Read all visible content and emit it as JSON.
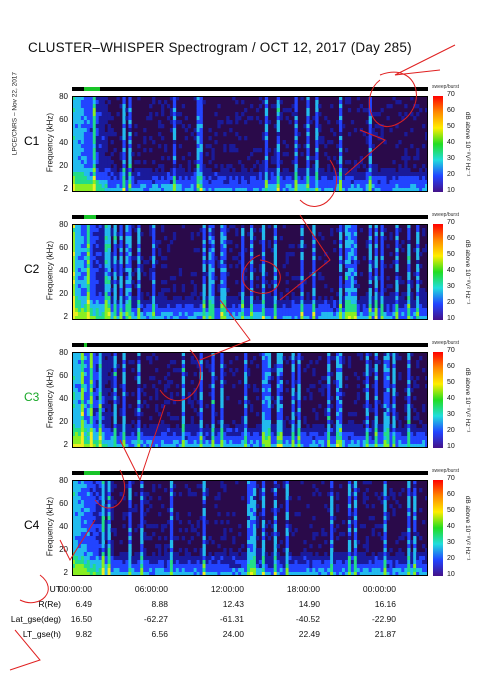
{
  "title": "CLUSTER–WHISPER Spectrogram / OCT 12, 2017 (Day 285)",
  "side_label": "LPCE/CNRS – Nov 22, 2017",
  "panels": [
    {
      "id": "C1",
      "color": "#000000",
      "ylabel": "Frequency (kHz)",
      "yticks": [
        "80",
        "60",
        "40",
        "20",
        "2"
      ],
      "status_label": "sweep/burst",
      "cbar_label": "dB above 10⁻⁸V² Hz⁻¹"
    },
    {
      "id": "C2",
      "color": "#000000",
      "ylabel": "Frequency (kHz)",
      "yticks": [
        "80",
        "60",
        "40",
        "20",
        "2"
      ],
      "status_label": "sweep/burst",
      "cbar_label": "dB above 10⁻⁸V² Hz⁻¹"
    },
    {
      "id": "C3",
      "color": "#18a828",
      "ylabel": "Frequency (kHz)",
      "yticks": [
        "80",
        "60",
        "40",
        "20",
        "2"
      ],
      "status_label": "sweep/burst",
      "cbar_label": "dB above 10⁻⁸V² Hz⁻¹"
    },
    {
      "id": "C4",
      "color": "#000000",
      "ylabel": "Frequency (kHz)",
      "yticks": [
        "80",
        "60",
        "40",
        "20",
        "2"
      ],
      "status_label": "sweep/burst",
      "cbar_label": "dB above 10⁻⁸V² Hz⁻¹"
    }
  ],
  "colorbar_ticks": [
    "70",
    "60",
    "50",
    "40",
    "30",
    "20",
    "10"
  ],
  "colorbar_colors": [
    "#ff0000",
    "#ff8800",
    "#ffee00",
    "#22dd22",
    "#22dddd",
    "#2244ff",
    "#441188"
  ],
  "ephemeris": {
    "rows": [
      {
        "key": "UT",
        "values": [
          "00:00:00",
          "06:00:00",
          "12:00:00",
          "18:00:00",
          "00:00:00"
        ]
      },
      {
        "key": "R(Re)",
        "values": [
          "6.49",
          "8.88",
          "12.43",
          "14.90",
          "16.16"
        ]
      },
      {
        "key": "Lat_gse(deg)",
        "values": [
          "16.50",
          "-62.27",
          "-61.31",
          "-40.52",
          "-22.90"
        ]
      },
      {
        "key": "LT_gse(h)",
        "values": [
          "9.82",
          "6.56",
          "24.00",
          "22.49",
          "21.87"
        ]
      }
    ]
  },
  "chart_data": {
    "type": "heatmap",
    "title": "CLUSTER–WHISPER Spectrogram / OCT 12, 2017 (Day 285)",
    "xlabel": "UT",
    "ylabel": "Frequency (kHz)",
    "x_ticks": [
      "00:00:00",
      "06:00:00",
      "12:00:00",
      "18:00:00",
      "00:00:00"
    ],
    "xlim": [
      "00:00:00",
      "00:00:00"
    ],
    "y_ticks": [
      2,
      20,
      40,
      60,
      80
    ],
    "ylim": [
      2,
      80
    ],
    "colorbar": {
      "label": "dB above 10⁻⁸V² Hz⁻¹",
      "range": [
        10,
        70
      ],
      "ticks": [
        10,
        20,
        30,
        40,
        50,
        60,
        70
      ]
    },
    "series": [
      {
        "name": "C1"
      },
      {
        "name": "C2"
      },
      {
        "name": "C3"
      },
      {
        "name": "C4"
      }
    ]
  }
}
